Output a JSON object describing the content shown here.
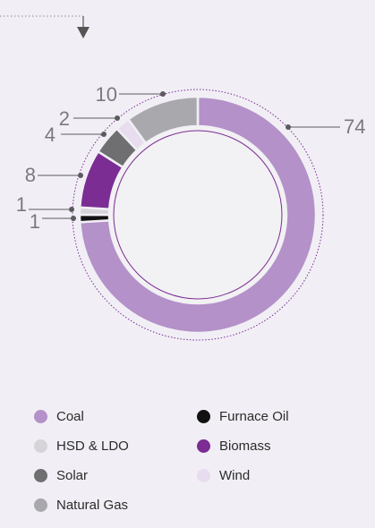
{
  "chart_data": {
    "type": "donut",
    "categories": [
      "Coal",
      "Furnace Oil",
      "HSD & LDO",
      "Biomass",
      "Solar",
      "Wind",
      "Natural Gas"
    ],
    "values": [
      74,
      1,
      1,
      8,
      4,
      2,
      10
    ],
    "colors": {
      "Coal": "#b491c8",
      "Furnace Oil": "#111111",
      "HSD & LDO": "#d6d3d9",
      "Biomass": "#7b2d93",
      "Solar": "#6f6f72",
      "Wind": "#e8dcef",
      "Natural Gas": "#a9a8ad"
    },
    "legend_placement": "bottom",
    "legend": [
      "Coal",
      "Furnace Oil",
      "HSD & LDO",
      "Biomass",
      "Solar",
      "Wind",
      "Natural Gas"
    ],
    "data_labels": [
      "74",
      "1",
      "1",
      "8",
      "4",
      "2",
      "10"
    ]
  },
  "icons": {
    "dropdown": "arrow-down-icon"
  },
  "theme": {
    "background": "#f1eff5",
    "label_color": "#7a7a7e",
    "leader_color": "#5b5b5f",
    "ring_accent": "#7b2d93",
    "inner_fill": "#f2f1f4"
  }
}
